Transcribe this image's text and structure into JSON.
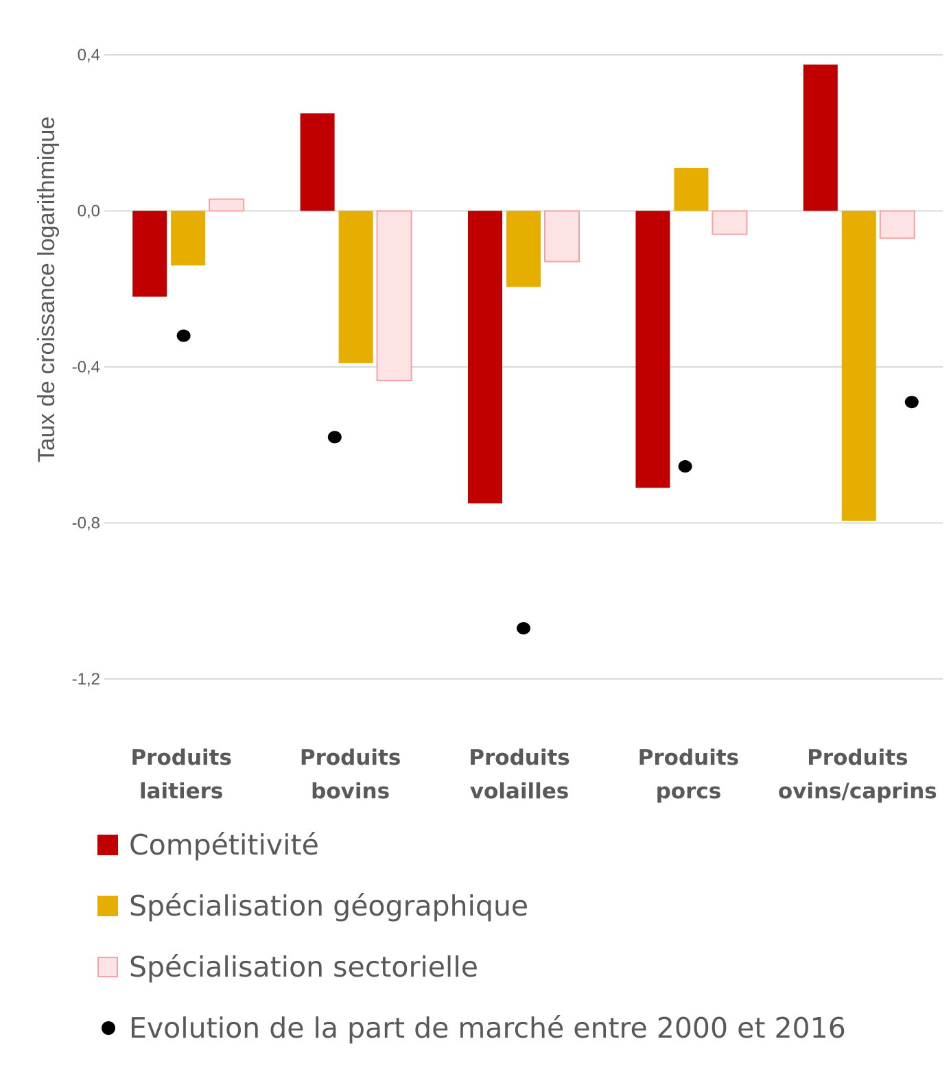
{
  "chart_data": {
    "type": "bar",
    "title": "",
    "xlabel": "",
    "ylabel": "Taux de croissance logarithmique",
    "ylim": [
      -1.2,
      0.4
    ],
    "yticks": [
      0.4,
      0.0,
      -0.4,
      -0.8,
      -1.2
    ],
    "ytick_labels": [
      "0,4",
      "0,0",
      "-0,4",
      "-0,8",
      "-1,2"
    ],
    "grid": true,
    "legend_position": "bottom",
    "categories": [
      [
        "Produits",
        "laitiers"
      ],
      [
        "Produits",
        "bovins"
      ],
      [
        "Produits",
        "volailles"
      ],
      [
        "Produits",
        "porcs"
      ],
      [
        "Produits",
        "ovins/caprins"
      ]
    ],
    "series": [
      {
        "name": "Compétitivité",
        "kind": "bar",
        "color": "#C00000",
        "values": [
          -0.22,
          0.25,
          -0.75,
          -0.71,
          0.375
        ]
      },
      {
        "name": "Spécialisation géographique",
        "kind": "bar",
        "color": "#E6AE00",
        "values": [
          -0.14,
          -0.39,
          -0.195,
          0.11,
          -0.795
        ]
      },
      {
        "name": "Spécialisation sectorielle",
        "kind": "bar",
        "color": "#FDE3E3",
        "border": "#F4A3A3",
        "values": [
          0.03,
          -0.435,
          -0.13,
          -0.06,
          -0.07
        ]
      },
      {
        "name": "Evolution de la part de marché entre 2000 et 2016",
        "kind": "scatter",
        "color": "#000000",
        "values": [
          -0.32,
          -0.58,
          -1.07,
          -0.655,
          -0.49
        ]
      }
    ]
  }
}
